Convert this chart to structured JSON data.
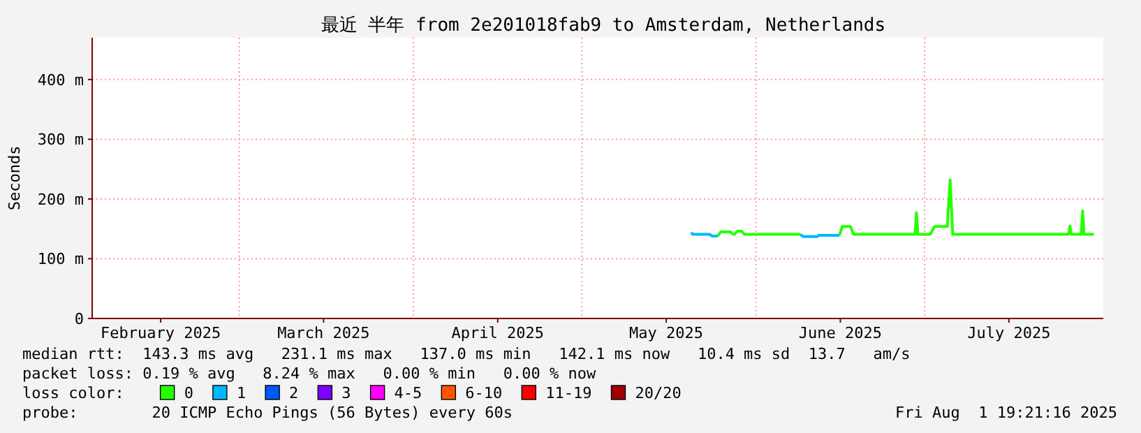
{
  "chart_data": {
    "type": "line",
    "title": "最近 半年 from 2e201018fab9 to Amsterdam, Netherlands",
    "ylabel": "Seconds",
    "xlim": [
      "2025-02-02T19:21",
      "2025-08-01T19:21"
    ],
    "xticks": [
      {
        "value": "2025-02-15",
        "label": "February 2025"
      },
      {
        "value": "2025-03-01",
        "label": null
      },
      {
        "value": "2025-03-16",
        "label": "March 2025"
      },
      {
        "value": "2025-04-01",
        "label": null
      },
      {
        "value": "2025-04-16",
        "label": "April 2025"
      },
      {
        "value": "2025-05-01",
        "label": null
      },
      {
        "value": "2025-05-16",
        "label": "May 2025"
      },
      {
        "value": "2025-06-01",
        "label": null
      },
      {
        "value": "2025-06-16",
        "label": "June 2025"
      },
      {
        "value": "2025-07-01",
        "label": null
      },
      {
        "value": "2025-07-16",
        "label": "July 2025"
      }
    ],
    "ylim": [
      0,
      470
    ],
    "yticks": [
      {
        "value": 0,
        "label": "0"
      },
      {
        "value": 100,
        "label": "100 m"
      },
      {
        "value": 200,
        "label": "200 m"
      },
      {
        "value": 300,
        "label": "300 m"
      },
      {
        "value": 400,
        "label": "400 m"
      }
    ],
    "grid": true,
    "legend": "bottom",
    "legend_title": "loss color:",
    "series": [
      {
        "name": "0",
        "color": "#26ff00",
        "x": [
          "2025-05-25T05:00",
          "2025-05-25T17:00",
          "2025-05-27T10:00",
          "2025-05-27T22:00",
          "2025-05-28T04:00",
          "2025-05-28T16:00",
          "2025-05-29T10:00",
          "2025-05-29T22:00",
          "2025-06-08T21:00",
          "2025-06-09T09:00",
          "2025-06-15T20:00",
          "2025-06-16T08:00",
          "2025-06-17T19:00",
          "2025-06-18T08:00",
          "2025-06-29T07:00",
          "2025-06-29T13:00",
          "2025-06-29T19:00",
          "2025-06-30T07:00",
          "2025-07-02T00:00",
          "2025-07-02T19:00",
          "2025-07-05T01:00",
          "2025-07-05T13:00",
          "2025-07-06T00:00",
          "2025-07-26T15:00",
          "2025-07-26T21:00",
          "2025-07-27T03:00",
          "2025-07-28T21:00",
          "2025-07-29T03:00",
          "2025-07-29T09:00",
          "2025-07-31T03:00"
        ],
        "values": [
          138,
          145,
          145,
          141,
          141,
          146,
          146,
          141,
          141,
          null,
          139,
          154,
          154,
          141,
          141,
          177,
          141,
          141,
          141,
          154,
          154,
          232,
          141,
          141,
          155,
          141,
          141,
          180,
          141,
          141
        ]
      },
      {
        "name": "1",
        "color": "#00b8ff",
        "x": [
          "2025-05-20T11:00",
          "2025-05-20T17:00",
          "2025-05-23T17:00",
          "2025-05-24T05:00",
          "2025-05-25T05:00",
          "2025-05-25T17:00",
          "2025-06-08T21:00",
          "2025-06-09T09:00",
          "2025-06-11T21:00",
          "2025-06-12T03:00",
          "2025-06-15T20:00"
        ],
        "values": [
          144,
          141,
          141,
          138,
          138,
          null,
          141,
          137,
          137,
          139,
          139
        ]
      },
      {
        "name": "2",
        "color": "#0059ff"
      },
      {
        "name": "3",
        "color": "#7e00ff"
      },
      {
        "name": "4-5",
        "color": "#ff00fe"
      },
      {
        "name": "6-10",
        "color": "#ff5500"
      },
      {
        "name": "11-19",
        "color": "#ff0000"
      },
      {
        "name": "20/20",
        "color": "#a10000"
      }
    ],
    "annotations": [
      "median rtt:  143.3 ms avg   231.1 ms max   137.0 ms min   142.1 ms now   10.4 ms sd  13.7   am/s",
      "packet loss: 0.19 % avg   8.24 % max   0.00 % min   0.00 % now",
      "probe:        20 ICMP Echo Pings (56 Bytes) every 60s",
      "Fri Aug  1 19:21:16 2025"
    ]
  }
}
